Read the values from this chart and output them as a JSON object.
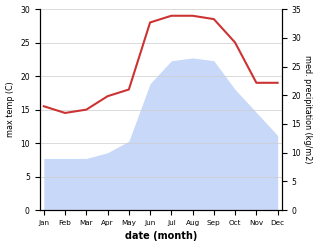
{
  "months": [
    "Jan",
    "Feb",
    "Mar",
    "Apr",
    "May",
    "Jun",
    "Jul",
    "Aug",
    "Sep",
    "Oct",
    "Nov",
    "Dec"
  ],
  "max_temp": [
    15.5,
    14.5,
    15.0,
    17.0,
    18.0,
    28.0,
    29.0,
    29.0,
    28.5,
    25.0,
    19.0,
    19.0
  ],
  "precipitation": [
    9.0,
    9.0,
    9.0,
    10.0,
    12.0,
    22.0,
    26.0,
    26.5,
    26.0,
    21.0,
    17.0,
    13.0
  ],
  "temp_color": "#cc3333",
  "precip_fill_color": "#c8d8f8",
  "background_color": "#ffffff",
  "ylabel_left": "max temp (C)",
  "ylabel_right": "med. precipitation (kg/m2)",
  "xlabel": "date (month)",
  "ylim_left": [
    0,
    30
  ],
  "ylim_right": [
    0,
    35
  ],
  "yticks_left": [
    0,
    5,
    10,
    15,
    20,
    25,
    30
  ],
  "yticks_right": [
    0,
    5,
    10,
    15,
    20,
    25,
    30,
    35
  ]
}
